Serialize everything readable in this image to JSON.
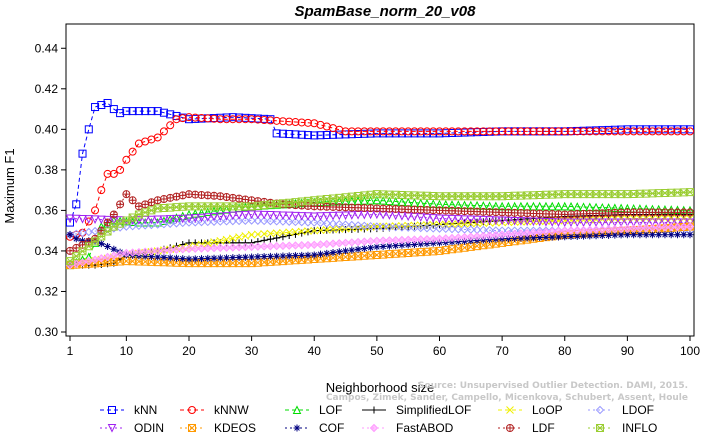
{
  "chart_data": {
    "type": "line",
    "title": "SpamBase_norm_20_v08",
    "xlabel": "Neighborhood size",
    "ylabel": "Maximum F1",
    "xlim": [
      1,
      100
    ],
    "ylim": [
      0.3,
      0.45
    ],
    "x_ticks": [
      1,
      10,
      20,
      30,
      40,
      50,
      60,
      70,
      80,
      90,
      100
    ],
    "y_ticks": [
      "0.30",
      "0.32",
      "0.34",
      "0.36",
      "0.38",
      "0.40",
      "0.42",
      "0.44"
    ],
    "grid": false,
    "legend_position": "bottom",
    "series": [
      {
        "name": "kNN",
        "color": "#0000ff",
        "marker": "square",
        "dash": "4,3",
        "points": [
          [
            1,
            0.354
          ],
          [
            2,
            0.363
          ],
          [
            3,
            0.388
          ],
          [
            4,
            0.4
          ],
          [
            5,
            0.411
          ],
          [
            6,
            0.412
          ],
          [
            7,
            0.413
          ],
          [
            8,
            0.41
          ],
          [
            9,
            0.408
          ],
          [
            10,
            0.409
          ],
          [
            15,
            0.409
          ],
          [
            20,
            0.405
          ],
          [
            27,
            0.406
          ],
          [
            33,
            0.405
          ],
          [
            34,
            0.398
          ],
          [
            40,
            0.397
          ],
          [
            50,
            0.398
          ],
          [
            60,
            0.398
          ],
          [
            70,
            0.399
          ],
          [
            80,
            0.399
          ],
          [
            90,
            0.4
          ],
          [
            100,
            0.4
          ]
        ]
      },
      {
        "name": "kNNW",
        "color": "#ff0000",
        "marker": "circle",
        "dash": "4,3",
        "points": [
          [
            1,
            0.347
          ],
          [
            3,
            0.349
          ],
          [
            5,
            0.36
          ],
          [
            6,
            0.37
          ],
          [
            7,
            0.378
          ],
          [
            8,
            0.378
          ],
          [
            9,
            0.38
          ],
          [
            10,
            0.385
          ],
          [
            12,
            0.393
          ],
          [
            15,
            0.396
          ],
          [
            18,
            0.405
          ],
          [
            20,
            0.406
          ],
          [
            25,
            0.405
          ],
          [
            30,
            0.405
          ],
          [
            40,
            0.403
          ],
          [
            45,
            0.399
          ],
          [
            60,
            0.399
          ],
          [
            80,
            0.399
          ],
          [
            100,
            0.399
          ]
        ]
      },
      {
        "name": "LOF",
        "color": "#00dd00",
        "marker": "triangle",
        "dash": "4,3",
        "points": [
          [
            1,
            0.333
          ],
          [
            4,
            0.337
          ],
          [
            5,
            0.344
          ],
          [
            6,
            0.352
          ],
          [
            8,
            0.355
          ],
          [
            12,
            0.354
          ],
          [
            15,
            0.354
          ],
          [
            20,
            0.358
          ],
          [
            30,
            0.362
          ],
          [
            40,
            0.364
          ],
          [
            50,
            0.365
          ],
          [
            60,
            0.363
          ],
          [
            70,
            0.362
          ],
          [
            80,
            0.362
          ],
          [
            90,
            0.361
          ],
          [
            100,
            0.36
          ]
        ]
      },
      {
        "name": "SimplifiedLOF",
        "color": "#000000",
        "marker": "plus",
        "dash": "",
        "points": [
          [
            1,
            0.333
          ],
          [
            5,
            0.333
          ],
          [
            8,
            0.334
          ],
          [
            10,
            0.338
          ],
          [
            15,
            0.34
          ],
          [
            20,
            0.344
          ],
          [
            30,
            0.344
          ],
          [
            35,
            0.347
          ],
          [
            40,
            0.35
          ],
          [
            50,
            0.351
          ],
          [
            60,
            0.353
          ],
          [
            70,
            0.355
          ],
          [
            80,
            0.357
          ],
          [
            90,
            0.358
          ],
          [
            100,
            0.358
          ]
        ]
      },
      {
        "name": "LoOP",
        "color": "#f0f000",
        "marker": "x",
        "dash": "4,3",
        "points": [
          [
            1,
            0.333
          ],
          [
            10,
            0.338
          ],
          [
            20,
            0.342
          ],
          [
            30,
            0.348
          ],
          [
            40,
            0.35
          ],
          [
            50,
            0.352
          ],
          [
            60,
            0.353
          ],
          [
            70,
            0.354
          ],
          [
            80,
            0.355
          ],
          [
            90,
            0.356
          ],
          [
            100,
            0.356
          ]
        ]
      },
      {
        "name": "LDOF",
        "color": "#9999ff",
        "marker": "diamond",
        "dash": "2,3",
        "points": [
          [
            1,
            0.348
          ],
          [
            10,
            0.352
          ],
          [
            20,
            0.354
          ],
          [
            30,
            0.355
          ],
          [
            40,
            0.354
          ],
          [
            50,
            0.352
          ],
          [
            60,
            0.351
          ],
          [
            70,
            0.35
          ],
          [
            80,
            0.35
          ],
          [
            90,
            0.35
          ],
          [
            100,
            0.35
          ]
        ]
      },
      {
        "name": "ODIN",
        "color": "#a020f0",
        "marker": "triangle-down",
        "dash": "2,3",
        "points": [
          [
            1,
            0.356
          ],
          [
            10,
            0.355
          ],
          [
            20,
            0.356
          ],
          [
            30,
            0.358
          ],
          [
            40,
            0.357
          ],
          [
            50,
            0.358
          ],
          [
            60,
            0.356
          ],
          [
            70,
            0.355
          ],
          [
            80,
            0.354
          ],
          [
            90,
            0.354
          ],
          [
            100,
            0.354
          ]
        ]
      },
      {
        "name": "KDEOS",
        "color": "#ff9900",
        "marker": "square-x",
        "dash": "2,3",
        "points": [
          [
            1,
            0.333
          ],
          [
            10,
            0.335
          ],
          [
            20,
            0.334
          ],
          [
            30,
            0.334
          ],
          [
            40,
            0.336
          ],
          [
            50,
            0.338
          ],
          [
            60,
            0.34
          ],
          [
            70,
            0.344
          ],
          [
            80,
            0.348
          ],
          [
            90,
            0.35
          ],
          [
            100,
            0.352
          ]
        ]
      },
      {
        "name": "COF",
        "color": "#000080",
        "marker": "asterisk",
        "dash": "2,3",
        "points": [
          [
            1,
            0.348
          ],
          [
            2,
            0.346
          ],
          [
            3,
            0.345
          ],
          [
            5,
            0.345
          ],
          [
            10,
            0.338
          ],
          [
            20,
            0.336
          ],
          [
            30,
            0.337
          ],
          [
            40,
            0.338
          ],
          [
            50,
            0.342
          ],
          [
            60,
            0.344
          ],
          [
            70,
            0.346
          ],
          [
            80,
            0.347
          ],
          [
            90,
            0.348
          ],
          [
            100,
            0.348
          ]
        ]
      },
      {
        "name": "FastABOD",
        "color": "#ff99ff",
        "marker": "diamond-filled",
        "dash": "2,3",
        "points": [
          [
            1,
            0.333
          ],
          [
            10,
            0.339
          ],
          [
            20,
            0.341
          ],
          [
            30,
            0.342
          ],
          [
            40,
            0.343
          ],
          [
            50,
            0.345
          ],
          [
            60,
            0.346
          ],
          [
            70,
            0.348
          ],
          [
            80,
            0.35
          ],
          [
            90,
            0.351
          ],
          [
            100,
            0.352
          ]
        ]
      },
      {
        "name": "LDF",
        "color": "#b22222",
        "marker": "circle-plus",
        "dash": "2,3",
        "points": [
          [
            1,
            0.34
          ],
          [
            5,
            0.346
          ],
          [
            8,
            0.358
          ],
          [
            10,
            0.368
          ],
          [
            12,
            0.362
          ],
          [
            15,
            0.365
          ],
          [
            20,
            0.368
          ],
          [
            25,
            0.367
          ],
          [
            30,
            0.365
          ],
          [
            35,
            0.363
          ],
          [
            40,
            0.362
          ],
          [
            50,
            0.361
          ],
          [
            60,
            0.36
          ],
          [
            70,
            0.359
          ],
          [
            80,
            0.358
          ],
          [
            90,
            0.359
          ],
          [
            100,
            0.359
          ]
        ]
      },
      {
        "name": "INFLO",
        "color": "#9acd32",
        "marker": "star",
        "dash": "2,3",
        "points": [
          [
            1,
            0.335
          ],
          [
            8,
            0.352
          ],
          [
            12,
            0.358
          ],
          [
            15,
            0.361
          ],
          [
            20,
            0.362
          ],
          [
            30,
            0.362
          ],
          [
            40,
            0.365
          ],
          [
            50,
            0.368
          ],
          [
            60,
            0.367
          ],
          [
            70,
            0.367
          ],
          [
            80,
            0.368
          ],
          [
            90,
            0.368
          ],
          [
            100,
            0.369
          ]
        ]
      }
    ]
  },
  "watermark": {
    "line1": "Source: Unsupervised Outlier Detection. DAMI, 2015.",
    "line2": "Campos, Zimek, Sander, Campello, Micenkova, Schubert, Assent, Houle"
  }
}
